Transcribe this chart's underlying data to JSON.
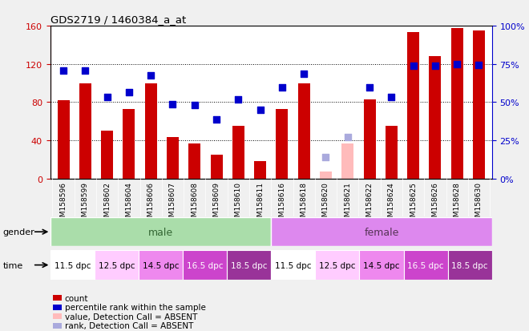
{
  "title": "GDS2719 / 1460384_a_at",
  "samples": [
    "GSM158596",
    "GSM158599",
    "GSM158602",
    "GSM158604",
    "GSM158606",
    "GSM158607",
    "GSM158608",
    "GSM158609",
    "GSM158610",
    "GSM158611",
    "GSM158616",
    "GSM158618",
    "GSM158620",
    "GSM158621",
    "GSM158622",
    "GSM158624",
    "GSM158625",
    "GSM158626",
    "GSM158628",
    "GSM158630"
  ],
  "bar_values": [
    82,
    100,
    50,
    73,
    100,
    43,
    37,
    25,
    55,
    18,
    73,
    100,
    null,
    null,
    83,
    55,
    153,
    128,
    158,
    155
  ],
  "bar_absent": [
    null,
    null,
    null,
    null,
    null,
    null,
    null,
    null,
    null,
    null,
    null,
    null,
    7,
    37,
    null,
    null,
    null,
    null,
    null,
    null
  ],
  "dot_values": [
    113,
    113,
    85,
    90,
    108,
    78,
    77,
    62,
    83,
    72,
    95,
    110,
    null,
    null,
    95,
    85,
    118,
    118,
    120,
    119
  ],
  "dot_absent": [
    null,
    null,
    null,
    null,
    null,
    null,
    null,
    null,
    null,
    null,
    null,
    null,
    22,
    43,
    null,
    null,
    null,
    null,
    null,
    null
  ],
  "bar_color": "#cc0000",
  "bar_absent_color": "#ffbbbb",
  "dot_color": "#0000cc",
  "dot_absent_color": "#aaaadd",
  "ylim": [
    0,
    160
  ],
  "yticks": [
    0,
    40,
    80,
    120,
    160
  ],
  "ytick_labels_left": [
    "0",
    "40",
    "80",
    "120",
    "160"
  ],
  "ytick_labels_right": [
    "0%",
    "25%",
    "50%",
    "75%",
    "100%"
  ],
  "bar_width": 0.55,
  "dot_size": 40,
  "plot_bg": "#ffffff",
  "fig_bg": "#f0f0f0",
  "ylabel_left_color": "#cc0000",
  "ylabel_right_color": "#0000cc",
  "grid_yticks": [
    40,
    80,
    120
  ],
  "gender_male_color": "#aaddaa",
  "gender_female_color": "#dd88ee",
  "gender_male_text_color": "#336633",
  "gender_female_text_color": "#553355",
  "time_bg_colors": [
    "#ffffff",
    "#ffccff",
    "#ee88ee",
    "#cc44cc",
    "#993399",
    "#ffffff",
    "#ffccff",
    "#ee88ee",
    "#cc44cc",
    "#993399"
  ],
  "time_text_colors": [
    "black",
    "black",
    "black",
    "white",
    "white",
    "black",
    "black",
    "black",
    "white",
    "white"
  ],
  "time_labels": [
    "11.5 dpc",
    "12.5 dpc",
    "14.5 dpc",
    "16.5 dpc",
    "18.5 dpc",
    "11.5 dpc",
    "12.5 dpc",
    "14.5 dpc",
    "16.5 dpc",
    "18.5 dpc"
  ],
  "legend_colors": [
    "#cc0000",
    "#0000cc",
    "#ffbbbb",
    "#aaaadd"
  ],
  "legend_labels": [
    "count",
    "percentile rank within the sample",
    "value, Detection Call = ABSENT",
    "rank, Detection Call = ABSENT"
  ],
  "xtick_bg_color": "#cccccc"
}
